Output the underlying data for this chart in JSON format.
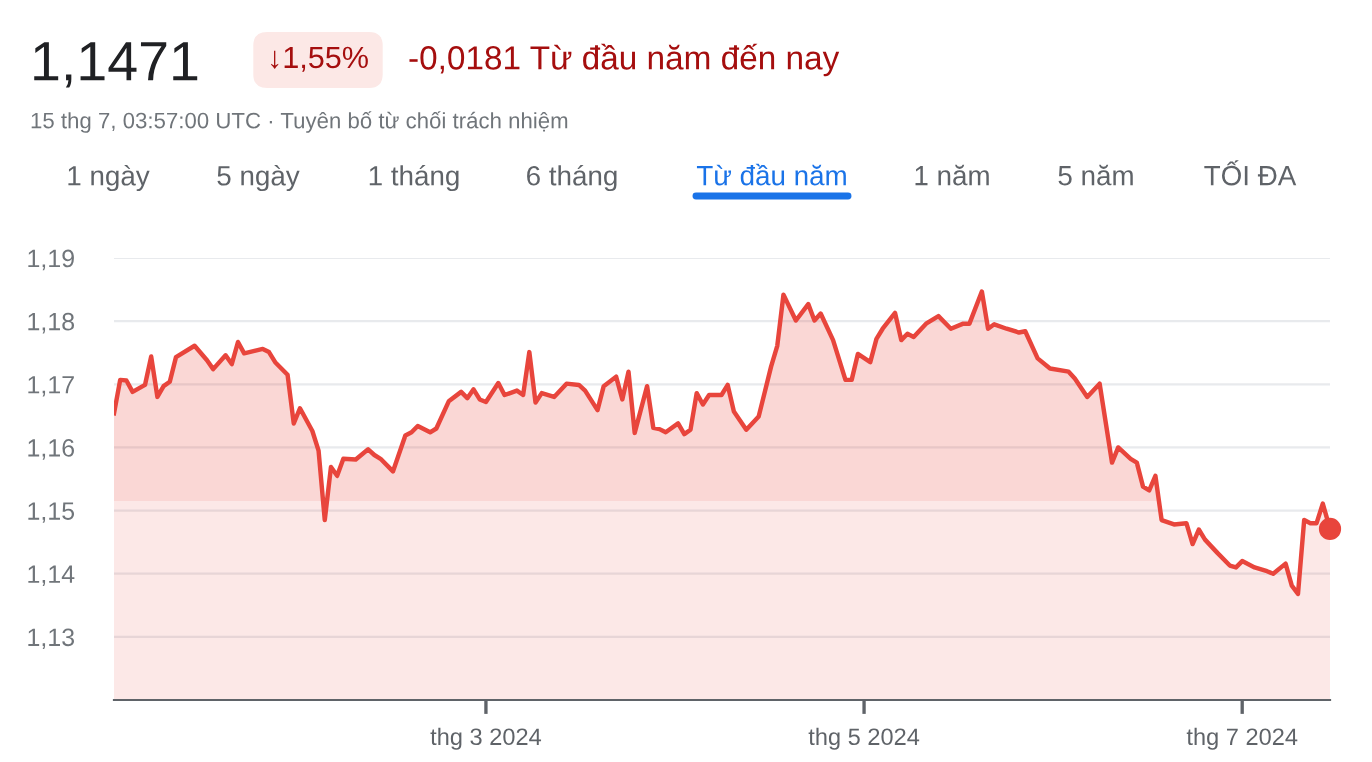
{
  "chart_data": {
    "type": "area",
    "title": "1,1471",
    "subtitle": "15 thg 7, 03:57:00 UTC · Tuyên bố từ chối trách nhiệm",
    "annotations": [
      "↓1,55%",
      "-0,0181 Từ đầu năm đến nay",
      "1 ngày",
      "5 ngày",
      "1 tháng",
      "6 tháng",
      "Từ đầu năm",
      "1 năm",
      "5 năm",
      "TỐI ĐA"
    ],
    "x": [
      "2024-01-01",
      "2024-01-02",
      "2024-01-03",
      "2024-01-04",
      "2024-01-06",
      "2024-01-07",
      "2024-01-08",
      "2024-01-09",
      "2024-01-10",
      "2024-01-11",
      "2024-01-14",
      "2024-01-16",
      "2024-01-17",
      "2024-01-19",
      "2024-01-20",
      "2024-01-21",
      "2024-01-22",
      "2024-01-25",
      "2024-01-26",
      "2024-01-27",
      "2024-01-29",
      "2024-01-30",
      "2024-01-31",
      "2024-02-02",
      "2024-02-03",
      "2024-02-04",
      "2024-02-05",
      "2024-02-06",
      "2024-02-07",
      "2024-02-09",
      "2024-02-11",
      "2024-02-12",
      "2024-02-13",
      "2024-02-15",
      "2024-02-17",
      "2024-02-18",
      "2024-02-19",
      "2024-02-21",
      "2024-02-22",
      "2024-02-24",
      "2024-02-26",
      "2024-02-27",
      "2024-02-28",
      "2024-02-29",
      "2024-03-01",
      "2024-03-03",
      "2024-03-04",
      "2024-03-06",
      "2024-03-07",
      "2024-03-08",
      "2024-03-09",
      "2024-03-10",
      "2024-03-12",
      "2024-03-14",
      "2024-03-16",
      "2024-03-17",
      "2024-03-19",
      "2024-03-20",
      "2024-03-22",
      "2024-03-23",
      "2024-03-24",
      "2024-03-25",
      "2024-03-27",
      "2024-03-28",
      "2024-03-29",
      "2024-03-30",
      "2024-04-01",
      "2024-04-02",
      "2024-04-03",
      "2024-04-04",
      "2024-04-05",
      "2024-04-06",
      "2024-04-08",
      "2024-04-09",
      "2024-04-10",
      "2024-04-12",
      "2024-04-14",
      "2024-04-16",
      "2024-04-17",
      "2024-04-18",
      "2024-04-20",
      "2024-04-22",
      "2024-04-23",
      "2024-04-24",
      "2024-04-26",
      "2024-04-28",
      "2024-04-29",
      "2024-04-30",
      "2024-05-02",
      "2024-05-03",
      "2024-05-04",
      "2024-05-06",
      "2024-05-07",
      "2024-05-08",
      "2024-05-09",
      "2024-05-11",
      "2024-05-13",
      "2024-05-15",
      "2024-05-17",
      "2024-05-18",
      "2024-05-20",
      "2024-05-21",
      "2024-05-22",
      "2024-05-24",
      "2024-05-26",
      "2024-05-27",
      "2024-05-29",
      "2024-05-31",
      "2024-06-03",
      "2024-06-04",
      "2024-06-06",
      "2024-06-08",
      "2024-06-10",
      "2024-06-11",
      "2024-06-13",
      "2024-06-14",
      "2024-06-15",
      "2024-06-16",
      "2024-06-17",
      "2024-06-18",
      "2024-06-20",
      "2024-06-22",
      "2024-06-23",
      "2024-06-24",
      "2024-06-25",
      "2024-06-27",
      "2024-06-29",
      "2024-06-30",
      "2024-07-01",
      "2024-07-03",
      "2024-07-05",
      "2024-07-06",
      "2024-07-08",
      "2024-07-09",
      "2024-07-10",
      "2024-07-11",
      "2024-07-12",
      "2024-07-13",
      "2024-07-14",
      "2024-07-15T03:57"
    ],
    "series": [
      {
        "color": "#e8453c",
        "values": [
          1.1654,
          1.1707,
          1.1706,
          1.1688,
          1.1699,
          1.1744,
          1.168,
          1.1697,
          1.1704,
          1.1743,
          1.1761,
          1.1738,
          1.1724,
          1.1746,
          1.1732,
          1.1767,
          1.1749,
          1.1756,
          1.1751,
          1.1735,
          1.1715,
          1.1638,
          1.1662,
          1.1626,
          1.1595,
          1.1485,
          1.1569,
          1.1555,
          1.1582,
          1.1581,
          1.1597,
          1.1588,
          1.1582,
          1.1562,
          1.1619,
          1.1624,
          1.1634,
          1.1624,
          1.163,
          1.1673,
          1.1688,
          1.1678,
          1.1692,
          1.1676,
          1.1672,
          1.1702,
          1.1683,
          1.169,
          1.1683,
          1.1751,
          1.1671,
          1.1686,
          1.168,
          1.1701,
          1.1699,
          1.169,
          1.1659,
          1.1697,
          1.1712,
          1.1676,
          1.172,
          1.1623,
          1.1697,
          1.1631,
          1.1629,
          1.1624,
          1.1638,
          1.1621,
          1.1628,
          1.1686,
          1.1668,
          1.1683,
          1.1683,
          1.1699,
          1.1657,
          1.1628,
          1.1649,
          1.1728,
          1.1761,
          1.1842,
          1.1801,
          1.1827,
          1.1801,
          1.1812,
          1.177,
          1.1707,
          1.1707,
          1.1748,
          1.1735,
          1.1772,
          1.1788,
          1.1813,
          1.177,
          1.178,
          1.1775,
          1.1796,
          1.1808,
          1.1788,
          1.1796,
          1.1796,
          1.1847,
          1.1788,
          1.1795,
          1.1788,
          1.1782,
          1.1784,
          1.1741,
          1.1725,
          1.172,
          1.1709,
          1.168,
          1.1701,
          1.1576,
          1.16,
          1.1582,
          1.1576,
          1.1538,
          1.1532,
          1.1555,
          1.1485,
          1.1478,
          1.148,
          1.1447,
          1.147,
          1.1454,
          1.1433,
          1.1413,
          1.141,
          1.142,
          1.141,
          1.1404,
          1.14,
          1.1416,
          1.1381,
          1.1368,
          1.1485,
          1.148,
          1.148,
          1.1511,
          1.1471
        ]
      }
    ],
    "xlim": [
      "2024-01-01",
      "2024-07-15T03:57"
    ],
    "xticks": [
      {
        "value": "2024-03-01",
        "label": "thg 3 2024"
      },
      {
        "value": "2024-05-01",
        "label": "thg 5 2024"
      },
      {
        "value": "2024-07-01",
        "label": "thg 7 2024"
      }
    ],
    "ylim": [
      1.12,
      1.19
    ],
    "yticks": [
      {
        "value": 1.13,
        "label": "1,13"
      },
      {
        "value": 1.14,
        "label": "1,14"
      },
      {
        "value": 1.15,
        "label": "1,15"
      },
      {
        "value": 1.16,
        "label": "1,16"
      },
      {
        "value": 1.17,
        "label": "1,17"
      },
      {
        "value": 1.18,
        "label": "1,18"
      },
      {
        "value": 1.19,
        "label": "1,19"
      }
    ],
    "grid": "y",
    "legend": false
  }
}
